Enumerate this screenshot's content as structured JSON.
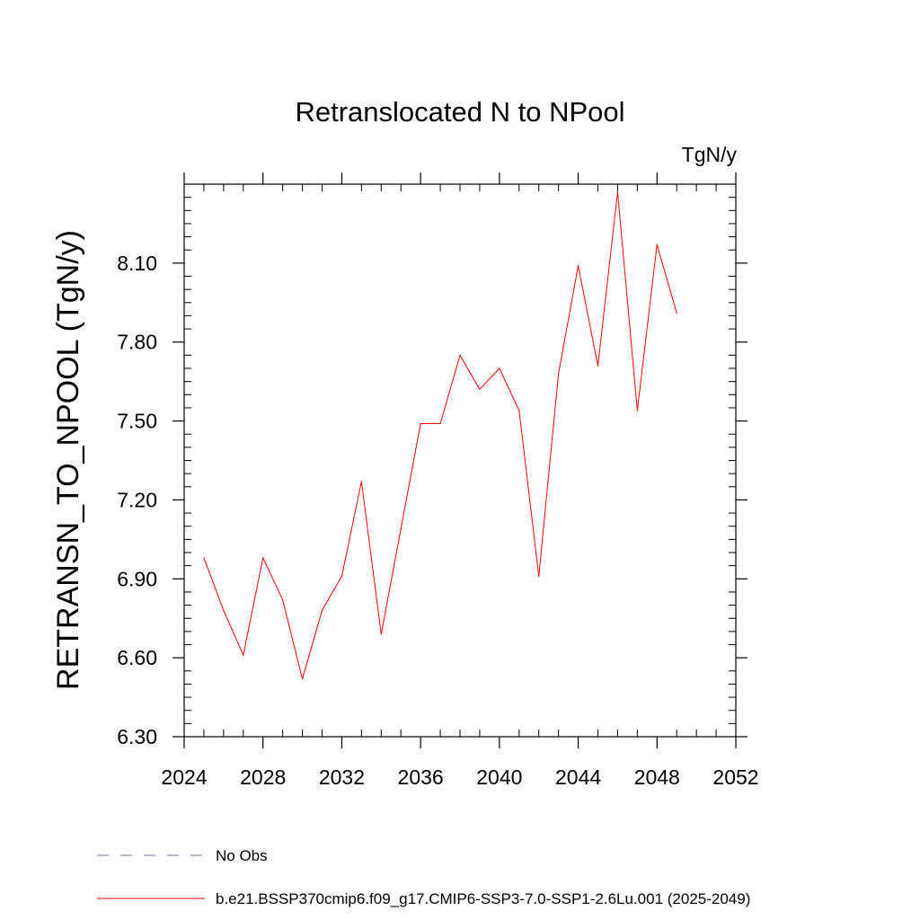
{
  "chart_data": {
    "type": "line",
    "title": "Retranslocated N to NPool",
    "units": "TgN/y",
    "ylabel": "RETRANSN_TO_NPOOL  (TgN/y)",
    "xlabel": "",
    "xlim": [
      2024,
      2052
    ],
    "ylim": [
      6.3,
      8.4
    ],
    "x_ticks": [
      2024,
      2028,
      2032,
      2036,
      2040,
      2044,
      2048,
      2052
    ],
    "y_ticks": [
      "6.30",
      "6.60",
      "6.90",
      "7.20",
      "7.50",
      "7.80",
      "8.10"
    ],
    "x_minor_step": 1,
    "y_minor_step": 0.05,
    "series": [
      {
        "name": "b.e21.BSSP370cmip6.f09_g17.CMIP6-SSP3-7.0-SSP1-2.6Lu.001 (2025-2049)",
        "color": "#ff0000",
        "x": [
          2025,
          2026,
          2027,
          2028,
          2029,
          2030,
          2031,
          2032,
          2033,
          2034,
          2035,
          2036,
          2037,
          2038,
          2039,
          2040,
          2041,
          2042,
          2043,
          2044,
          2045,
          2046,
          2047,
          2048,
          2049
        ],
        "y": [
          6.98,
          6.78,
          6.61,
          6.98,
          6.82,
          6.52,
          6.78,
          6.91,
          7.27,
          6.69,
          7.09,
          7.49,
          7.49,
          7.75,
          7.62,
          7.7,
          7.54,
          6.91,
          7.68,
          8.09,
          7.71,
          8.37,
          7.54,
          8.17,
          7.91
        ]
      }
    ],
    "legend": [
      {
        "label": "No Obs",
        "style": "dashed",
        "color": "#7b68b8"
      },
      {
        "label": "b.e21.BSSP370cmip6.f09_g17.CMIP6-SSP3-7.0-SSP1-2.6Lu.001 (2025-2049)",
        "style": "solid",
        "color": "#ff0000"
      }
    ],
    "legend_position": "bottom",
    "grid": false
  }
}
